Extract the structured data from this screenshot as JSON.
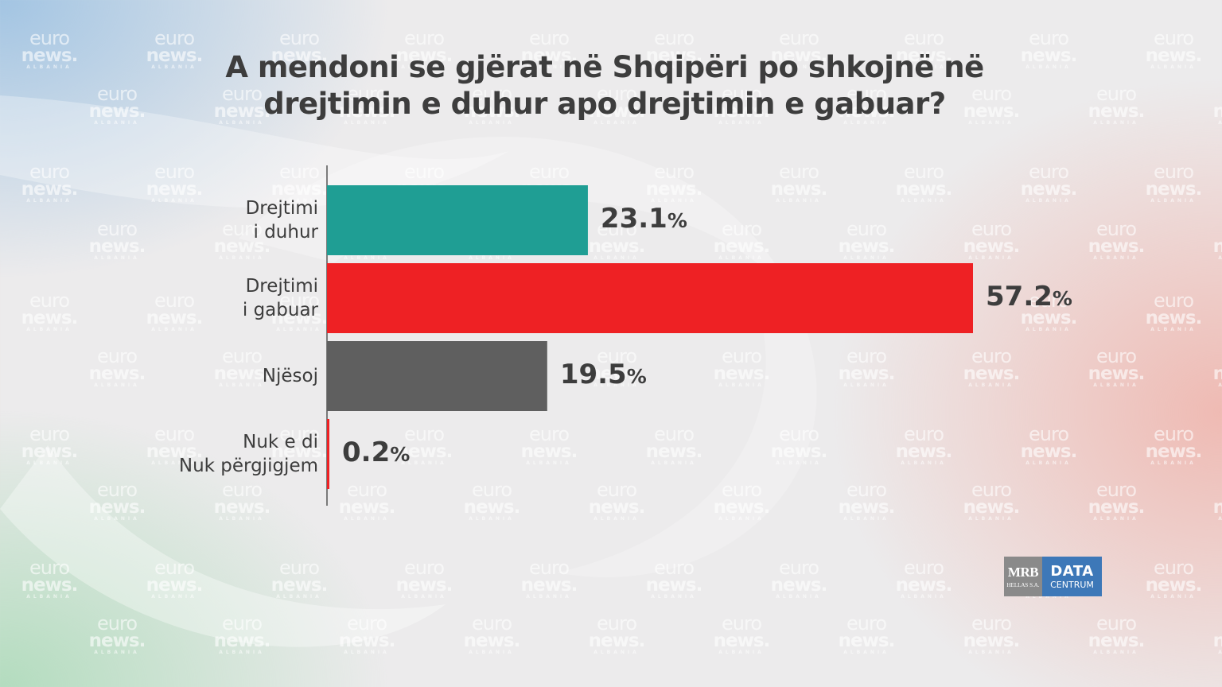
{
  "title_lines": [
    "A mendoni se gjërat në Shqipëri po shkojnë në",
    "drejtimin e duhur apo drejtimin e gabuar?"
  ],
  "chart_data": {
    "type": "bar",
    "orientation": "horizontal",
    "title": "A mendoni se gjërat në Shqipëri po shkojnë në drejtimin e duhur apo drejtimin e gabuar?",
    "categories": [
      "Drejtimi\ni duhur",
      "Drejtimi\ni gabuar",
      "Njësoj",
      "Nuk e di\nNuk përgjigjem"
    ],
    "values": [
      23.1,
      57.2,
      19.5,
      0.2
    ],
    "value_labels": [
      "23.1",
      "57.2",
      "19.5",
      "0.2"
    ],
    "unit": "%",
    "colors": [
      "#1f9e94",
      "#ee2124",
      "#5f5f5f",
      "#ee2124"
    ],
    "xlim": [
      0,
      57.2
    ],
    "grid": false,
    "legend": "none"
  },
  "watermark": {
    "line1": "euro",
    "line2": "news.",
    "line3": "ALBANIA"
  },
  "logo": {
    "mrb": "MRB",
    "mrb_sub": "HELLAS S.A.",
    "data": "DATA",
    "centrum": "CENTRUM"
  }
}
